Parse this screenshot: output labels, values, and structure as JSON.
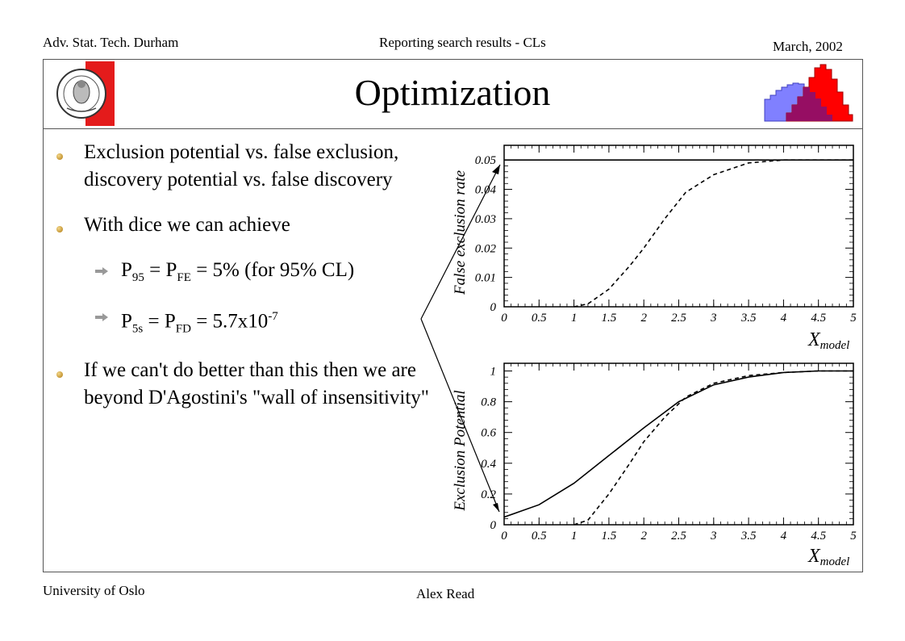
{
  "header": {
    "left": "Adv. Stat. Tech. Durham",
    "center": "Reporting search results - CLs",
    "right": "March, 2002"
  },
  "footer": {
    "left": "University of Oslo",
    "center": "Alex Read"
  },
  "slide": {
    "title": "Optimization",
    "bullets": [
      "Exclusion potential vs. false exclusion, discovery potential vs. false discovery",
      "With dice we can achieve",
      "If we can't do better than this then we are beyond D'Agostini's \"wall of insensitivity\""
    ],
    "sub1": {
      "P": "P",
      "s1": "95",
      "eq1": " = P",
      "s2": "FE",
      "eq2": " = 5% (for 95% CL)"
    },
    "sub2": {
      "P": "P",
      "s1": "5s",
      "eq1": " = P",
      "s2": "FD",
      "eq2": " = 5.7x10",
      "sup": "-7"
    }
  },
  "colors": {
    "logo_red": "#e41b1b",
    "hist_blue": "#8080ff",
    "hist_red": "#ff0000",
    "hist_overlap": "#8b0f6e"
  },
  "icons": [
    "university-seal-icon",
    "histogram-logo-icon",
    "bullet-dot-icon",
    "arrow-bullet-icon"
  ],
  "chart_data": [
    {
      "type": "line",
      "xlabel_main": "X",
      "xlabel_sub": "model",
      "ylabel": "False exclusion rate",
      "xlim": [
        0,
        5
      ],
      "ylim": [
        0,
        0.055
      ],
      "xticks": [
        "0",
        "0.5",
        "1",
        "1.5",
        "2",
        "2.5",
        "3",
        "3.5",
        "4",
        "4.5",
        "5"
      ],
      "yticks": [
        "0",
        "0.01",
        "0.02",
        "0.03",
        "0.04",
        "0.05"
      ],
      "series": [
        {
          "style": "solid",
          "x": [
            0,
            5
          ],
          "y": [
            0.05,
            0.05
          ]
        },
        {
          "style": "dashed",
          "x": [
            1.0,
            1.2,
            1.5,
            1.8,
            2.0,
            2.3,
            2.6,
            3.0,
            3.5,
            4.0,
            4.5,
            5.0
          ],
          "y": [
            0.0,
            0.001,
            0.006,
            0.014,
            0.02,
            0.03,
            0.039,
            0.045,
            0.049,
            0.05,
            0.05,
            0.05
          ]
        }
      ]
    },
    {
      "type": "line",
      "xlabel_main": "X",
      "xlabel_sub": "model",
      "ylabel": "Exclusion Potential",
      "xlim": [
        0,
        5
      ],
      "ylim": [
        0,
        1.05
      ],
      "xticks": [
        "0",
        "0.5",
        "1",
        "1.5",
        "2",
        "2.5",
        "3",
        "3.5",
        "4",
        "4.5",
        "5"
      ],
      "yticks": [
        "0",
        "0.2",
        "0.4",
        "0.6",
        "0.8",
        "1"
      ],
      "series": [
        {
          "style": "solid",
          "x": [
            0,
            0.5,
            1.0,
            1.5,
            2.0,
            2.5,
            3.0,
            3.5,
            4.0,
            4.5,
            5.0
          ],
          "y": [
            0.05,
            0.13,
            0.27,
            0.45,
            0.63,
            0.8,
            0.91,
            0.96,
            0.99,
            1.0,
            1.0
          ]
        },
        {
          "style": "dashed",
          "x": [
            1.0,
            1.2,
            1.5,
            1.8,
            2.0,
            2.3,
            2.6,
            3.0,
            3.5,
            4.0,
            4.5,
            5.0
          ],
          "y": [
            0.0,
            0.03,
            0.2,
            0.4,
            0.54,
            0.7,
            0.83,
            0.92,
            0.97,
            0.99,
            1.0,
            1.0
          ]
        }
      ]
    }
  ]
}
